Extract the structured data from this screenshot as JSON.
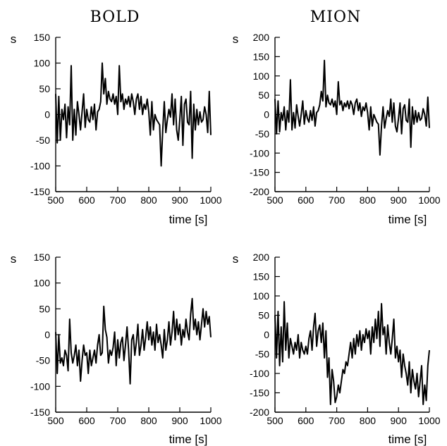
{
  "titles": {
    "left": "BOLD",
    "right": "MION"
  },
  "chart_data": [
    {
      "type": "line",
      "column_title": "BOLD",
      "ylabel": "s",
      "xlabel": "time [s]",
      "xlim": [
        500,
        1000
      ],
      "ylim": [
        -150,
        150
      ],
      "xticks": [
        500,
        600,
        700,
        800,
        900,
        1000
      ],
      "yticks": [
        -150,
        -100,
        -50,
        0,
        50,
        100,
        150
      ],
      "series": [
        {
          "x": [
            500,
            505,
            510,
            515,
            520,
            525,
            530,
            535,
            540,
            545,
            550,
            555,
            560,
            565,
            570,
            575,
            580,
            585,
            590,
            595,
            600,
            605,
            610,
            615,
            620,
            625,
            630,
            635,
            640,
            645,
            650,
            655,
            660,
            665,
            670,
            675,
            680,
            685,
            690,
            695,
            700,
            705,
            710,
            715,
            720,
            725,
            730,
            735,
            740,
            745,
            750,
            755,
            760,
            765,
            770,
            775,
            780,
            785,
            790,
            795,
            800,
            805,
            810,
            815,
            820,
            825,
            830,
            835,
            840,
            845,
            850,
            855,
            860,
            865,
            870,
            875,
            880,
            885,
            890,
            895,
            900,
            905,
            910,
            915,
            920,
            925,
            930,
            935,
            940,
            945,
            950,
            955,
            960,
            965,
            970,
            975,
            980,
            985,
            990,
            995,
            1000
          ],
          "values": [
            40,
            -55,
            35,
            -50,
            10,
            -10,
            20,
            -45,
            15,
            -20,
            95,
            -50,
            10,
            -40,
            25,
            0,
            -30,
            5,
            40,
            -25,
            10,
            -10,
            -15,
            15,
            -10,
            20,
            -30,
            5,
            10,
            25,
            100,
            40,
            70,
            20,
            45,
            30,
            25,
            40,
            20,
            35,
            0,
            95,
            25,
            40,
            10,
            30,
            20,
            35,
            15,
            40,
            25,
            0,
            30,
            40,
            10,
            35,
            0,
            20,
            10,
            30,
            5,
            -40,
            25,
            -30,
            0,
            -10,
            -15,
            -20,
            -100,
            -30,
            25,
            -35,
            -10,
            10,
            -5,
            40,
            -20,
            30,
            -30,
            -50,
            -10,
            35,
            -60,
            20,
            30,
            -15,
            -20,
            45,
            -85,
            20,
            -30,
            10,
            -20,
            5,
            -15,
            -10,
            15,
            0,
            -35,
            45,
            -40
          ]
        }
      ]
    },
    {
      "type": "line",
      "column_title": "MION",
      "ylabel": "s",
      "xlabel": "time [s]",
      "xlim": [
        500,
        1000
      ],
      "ylim": [
        -200,
        200
      ],
      "xticks": [
        500,
        600,
        700,
        800,
        900,
        1000
      ],
      "yticks": [
        -200,
        -150,
        -100,
        -50,
        0,
        50,
        100,
        150,
        200
      ],
      "series": [
        {
          "x": [
            500,
            505,
            510,
            515,
            520,
            525,
            530,
            535,
            540,
            545,
            550,
            555,
            560,
            565,
            570,
            575,
            580,
            585,
            590,
            595,
            600,
            605,
            610,
            615,
            620,
            625,
            630,
            635,
            640,
            645,
            650,
            655,
            660,
            665,
            670,
            675,
            680,
            685,
            690,
            695,
            700,
            705,
            710,
            715,
            720,
            725,
            730,
            735,
            740,
            745,
            750,
            755,
            760,
            765,
            770,
            775,
            780,
            785,
            790,
            795,
            800,
            805,
            810,
            815,
            820,
            825,
            830,
            835,
            840,
            845,
            850,
            855,
            860,
            865,
            870,
            875,
            880,
            885,
            890,
            895,
            900,
            905,
            910,
            915,
            920,
            925,
            930,
            935,
            940,
            945,
            950,
            955,
            960,
            965,
            970,
            975,
            980,
            985,
            990,
            995,
            1000
          ],
          "values": [
            40,
            -50,
            35,
            -45,
            5,
            -15,
            20,
            -40,
            10,
            -20,
            90,
            -40,
            5,
            -35,
            25,
            -5,
            -30,
            0,
            35,
            -25,
            10,
            -10,
            -20,
            10,
            -15,
            20,
            -30,
            5,
            10,
            25,
            60,
            35,
            140,
            20,
            50,
            30,
            25,
            40,
            20,
            35,
            0,
            85,
            25,
            35,
            10,
            30,
            20,
            35,
            15,
            35,
            25,
            0,
            30,
            40,
            10,
            30,
            -5,
            20,
            10,
            30,
            5,
            -40,
            20,
            -30,
            0,
            -10,
            -20,
            -25,
            -105,
            -30,
            20,
            -35,
            -10,
            10,
            -5,
            40,
            -20,
            30,
            -30,
            -45,
            -10,
            30,
            -50,
            15,
            25,
            -15,
            -20,
            40,
            -85,
            20,
            -25,
            10,
            -20,
            5,
            -15,
            -10,
            15,
            0,
            -30,
            45,
            -35
          ]
        }
      ]
    },
    {
      "type": "line",
      "column_title": "BOLD",
      "ylabel": "s",
      "xlabel": "time [s]",
      "xlim": [
        500,
        1000
      ],
      "ylim": [
        -150,
        150
      ],
      "xticks": [
        500,
        600,
        700,
        800,
        900,
        1000
      ],
      "yticks": [
        -150,
        -100,
        -50,
        0,
        50,
        100,
        150
      ],
      "series": [
        {
          "x": [
            500,
            505,
            510,
            515,
            520,
            525,
            530,
            535,
            540,
            545,
            550,
            555,
            560,
            565,
            570,
            575,
            580,
            585,
            590,
            595,
            600,
            605,
            610,
            615,
            620,
            625,
            630,
            635,
            640,
            645,
            650,
            655,
            660,
            665,
            670,
            675,
            680,
            685,
            690,
            695,
            700,
            705,
            710,
            715,
            720,
            725,
            730,
            735,
            740,
            745,
            750,
            755,
            760,
            765,
            770,
            775,
            780,
            785,
            790,
            795,
            800,
            805,
            810,
            815,
            820,
            825,
            830,
            835,
            840,
            845,
            850,
            855,
            860,
            865,
            870,
            875,
            880,
            885,
            890,
            895,
            900,
            905,
            910,
            915,
            920,
            925,
            930,
            935,
            940,
            945,
            950,
            955,
            960,
            965,
            970,
            975,
            980,
            985,
            990,
            995,
            1000
          ],
          "values": [
            5,
            -75,
            0,
            -55,
            -45,
            -60,
            -30,
            -40,
            -70,
            30,
            -35,
            -55,
            -40,
            -20,
            -60,
            -30,
            -90,
            -50,
            -20,
            -40,
            -35,
            -75,
            -30,
            -60,
            -45,
            -30,
            -55,
            -20,
            0,
            -40,
            -35,
            55,
            10,
            -5,
            -55,
            -30,
            -40,
            -25,
            5,
            -60,
            -10,
            -45,
            -15,
            -5,
            -50,
            -20,
            15,
            -30,
            -95,
            -10,
            0,
            -40,
            -15,
            20,
            -40,
            -20,
            10,
            -30,
            -5,
            25,
            -10,
            15,
            -20,
            5,
            -30,
            20,
            -15,
            0,
            -20,
            -45,
            10,
            -30,
            -10,
            25,
            -20,
            5,
            45,
            -10,
            30,
            0,
            20,
            -20,
            10,
            -5,
            30,
            5,
            -10,
            40,
            70,
            10,
            30,
            0,
            25,
            -10,
            20,
            50,
            15,
            45,
            20,
            35,
            -5
          ]
        }
      ]
    },
    {
      "type": "line",
      "column_title": "MION",
      "ylabel": "s",
      "xlabel": "time [s]",
      "xlim": [
        500,
        1000
      ],
      "ylim": [
        -200,
        200
      ],
      "xticks": [
        500,
        600,
        700,
        800,
        900,
        1000
      ],
      "yticks": [
        -200,
        -150,
        -100,
        -50,
        0,
        50,
        100,
        150,
        200
      ],
      "series": [
        {
          "x": [
            500,
            505,
            510,
            515,
            520,
            525,
            530,
            535,
            540,
            545,
            550,
            555,
            560,
            565,
            570,
            575,
            580,
            585,
            590,
            595,
            600,
            605,
            610,
            615,
            620,
            625,
            630,
            635,
            640,
            645,
            650,
            655,
            660,
            665,
            670,
            675,
            680,
            685,
            690,
            695,
            700,
            705,
            710,
            715,
            720,
            725,
            730,
            735,
            740,
            745,
            750,
            755,
            760,
            765,
            770,
            775,
            780,
            785,
            790,
            795,
            800,
            805,
            810,
            815,
            820,
            825,
            830,
            835,
            840,
            845,
            850,
            855,
            860,
            865,
            870,
            875,
            880,
            885,
            890,
            895,
            900,
            905,
            910,
            915,
            920,
            925,
            930,
            935,
            940,
            945,
            950,
            955,
            960,
            965,
            970,
            975,
            980,
            985,
            990,
            995,
            1000
          ],
          "values": [
            50,
            -60,
            60,
            -80,
            20,
            -70,
            85,
            -40,
            30,
            -60,
            -10,
            -30,
            -50,
            -20,
            -40,
            0,
            -60,
            -20,
            -40,
            -50,
            -30,
            -50,
            -10,
            10,
            -40,
            20,
            55,
            -30,
            10,
            25,
            -20,
            30,
            -60,
            10,
            -110,
            -60,
            -180,
            -90,
            -120,
            -175,
            -160,
            -130,
            -150,
            -120,
            -90,
            -100,
            -70,
            -80,
            -50,
            -20,
            -60,
            -10,
            -50,
            0,
            -30,
            10,
            -40,
            0,
            -20,
            15,
            -10,
            10,
            -50,
            20,
            -20,
            40,
            -10,
            60,
            -30,
            80,
            0,
            20,
            -50,
            25,
            -20,
            -50,
            -10,
            40,
            -60,
            -30,
            -70,
            -40,
            -110,
            -50,
            -80,
            -100,
            -130,
            -70,
            -150,
            -90,
            -120,
            -140,
            -100,
            -160,
            -120,
            -80,
            -180,
            -130,
            -170,
            -80,
            -40
          ]
        }
      ]
    }
  ]
}
